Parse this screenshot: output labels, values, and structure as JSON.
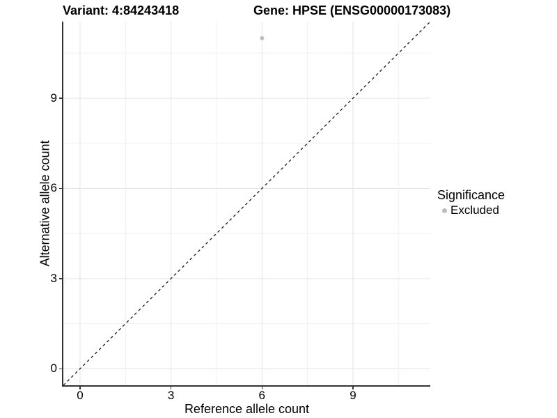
{
  "chart_data": {
    "type": "scatter",
    "title_left": "Variant: 4:84243418",
    "title_right": "Gene: HPSE (ENSG00000173083)",
    "xlabel": "Reference allele count",
    "ylabel": "Alternative allele count",
    "xlim": [
      -0.55,
      11.55
    ],
    "ylim": [
      -0.55,
      11.55
    ],
    "x_ticks": [
      0,
      3,
      6,
      9
    ],
    "x_minor_ticks": [
      1.5,
      4.5,
      7.5,
      10.5
    ],
    "y_ticks": [
      0,
      3,
      6,
      9
    ],
    "y_minor_ticks": [
      1.5,
      4.5,
      7.5,
      10.5
    ],
    "grid": true,
    "series": [
      {
        "name": "Excluded",
        "color": "#bebebe",
        "points": [
          {
            "x": 6,
            "y": 11
          }
        ]
      }
    ],
    "identity_line": {
      "style": "dashed",
      "color": "#1a1a1a",
      "from": [
        -0.55,
        -0.55
      ],
      "to": [
        11.55,
        11.55
      ]
    },
    "legend": {
      "title": "Significance",
      "position": "right",
      "entries": [
        {
          "label": "Excluded",
          "color": "#bebebe"
        }
      ]
    }
  },
  "style": {
    "background": "#ffffff",
    "grid_major_color": "#e3e3e3",
    "grid_minor_color": "#f0f0f0",
    "axis_line_color": "#333333",
    "point_color": "#bebebe",
    "point_radius": 3,
    "text_color": "#000000"
  }
}
